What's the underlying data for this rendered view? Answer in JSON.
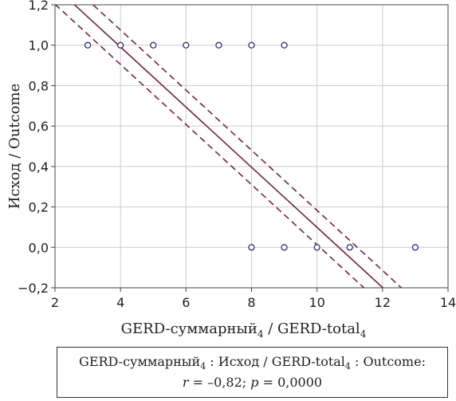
{
  "chart_data": {
    "type": "scatter",
    "xlabel": {
      "main": "GERD-суммарный",
      "sub1": "4",
      "sep": " / GERD-total",
      "sub2": "4"
    },
    "ylabel": "Исход / Outcome",
    "xlim": [
      2,
      14
    ],
    "ylim": [
      -0.2,
      1.2
    ],
    "x_ticks": [
      "2",
      "4",
      "6",
      "8",
      "10",
      "12",
      "14"
    ],
    "y_ticks": [
      "−0,2",
      "0,0",
      "0,2",
      "0,4",
      "0,6",
      "0,8",
      "1,0",
      "1,2"
    ],
    "grid": true,
    "points": [
      {
        "x": 3,
        "y": 1.0
      },
      {
        "x": 4,
        "y": 1.0
      },
      {
        "x": 5,
        "y": 1.0
      },
      {
        "x": 6,
        "y": 1.0
      },
      {
        "x": 7,
        "y": 1.0
      },
      {
        "x": 8,
        "y": 1.0
      },
      {
        "x": 9,
        "y": 1.0
      },
      {
        "x": 8,
        "y": 0.0
      },
      {
        "x": 9,
        "y": 0.0
      },
      {
        "x": 10,
        "y": 0.0
      },
      {
        "x": 11,
        "y": 0.0
      },
      {
        "x": 13,
        "y": 0.0
      }
    ],
    "regression_line": {
      "intercept": 1.586,
      "slope": -0.1487
    },
    "confidence_band": {
      "upper_intercept": 1.67,
      "lower_intercept": 1.5,
      "slope": -0.1487
    },
    "colors": {
      "line": "#7a1f45",
      "points": "#2a2a7a",
      "grid": "#cccccc"
    }
  },
  "caption": {
    "line1_a": "GERD-суммарный",
    "line1_sub1": "4",
    "line1_b": " : Исход  /  GERD-total",
    "line1_sub2": "4",
    "line1_c": " : Outcome:",
    "r_label": "r",
    "r_value": " = –0,82; ",
    "p_label": "p",
    "p_value": " = 0,0000"
  }
}
